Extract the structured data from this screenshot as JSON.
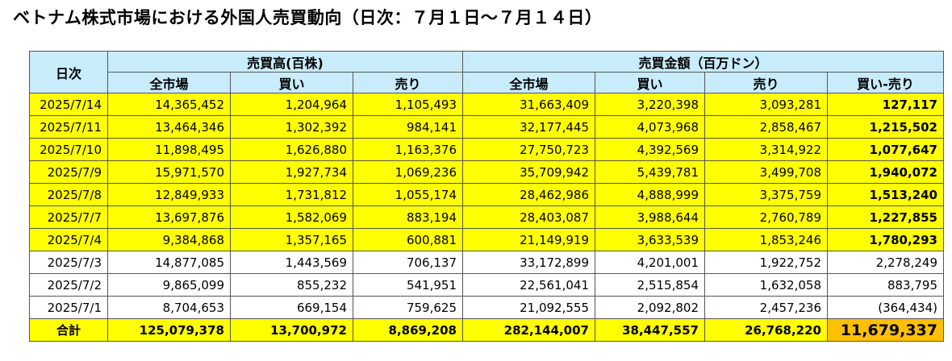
{
  "title": "ベトナム株式市場における外国人売買動向（日次：７月１日〜７月１４日）",
  "headers": {
    "date": "日次",
    "volume_group": "売買高(百株)",
    "value_group": "売買金額（百万ドン）",
    "volume_cols": [
      "全市場",
      "買い",
      "売り"
    ],
    "value_cols": [
      "全市場",
      "買い",
      "売り",
      "買い-売り"
    ]
  },
  "rows": [
    {
      "date": "2025/7/14",
      "highlight": true,
      "v_all": "14,365,452",
      "v_buy": "1,204,964",
      "v_sell": "1,105,493",
      "m_all": "31,663,409",
      "m_buy": "3,220,398",
      "m_sell": "3,093,281",
      "net": "127,117"
    },
    {
      "date": "2025/7/11",
      "highlight": true,
      "v_all": "13,464,346",
      "v_buy": "1,302,392",
      "v_sell": "984,141",
      "m_all": "32,177,445",
      "m_buy": "4,073,968",
      "m_sell": "2,858,467",
      "net": "1,215,502"
    },
    {
      "date": "2025/7/10",
      "highlight": true,
      "v_all": "11,898,495",
      "v_buy": "1,626,880",
      "v_sell": "1,163,376",
      "m_all": "27,750,723",
      "m_buy": "4,392,569",
      "m_sell": "3,314,922",
      "net": "1,077,647"
    },
    {
      "date": "2025/7/9",
      "highlight": true,
      "v_all": "15,971,570",
      "v_buy": "1,927,734",
      "v_sell": "1,069,236",
      "m_all": "35,709,942",
      "m_buy": "5,439,781",
      "m_sell": "3,499,708",
      "net": "1,940,072"
    },
    {
      "date": "2025/7/8",
      "highlight": true,
      "v_all": "12,849,933",
      "v_buy": "1,731,812",
      "v_sell": "1,055,174",
      "m_all": "28,462,986",
      "m_buy": "4,888,999",
      "m_sell": "3,375,759",
      "net": "1,513,240"
    },
    {
      "date": "2025/7/7",
      "highlight": true,
      "v_all": "13,697,876",
      "v_buy": "1,582,069",
      "v_sell": "883,194",
      "m_all": "28,403,087",
      "m_buy": "3,988,644",
      "m_sell": "2,760,789",
      "net": "1,227,855"
    },
    {
      "date": "2025/7/4",
      "highlight": true,
      "v_all": "9,384,868",
      "v_buy": "1,357,165",
      "v_sell": "600,881",
      "m_all": "21,149,919",
      "m_buy": "3,633,539",
      "m_sell": "1,853,246",
      "net": "1,780,293"
    },
    {
      "date": "2025/7/3",
      "highlight": false,
      "v_all": "14,877,085",
      "v_buy": "1,443,569",
      "v_sell": "706,137",
      "m_all": "33,172,899",
      "m_buy": "4,201,001",
      "m_sell": "1,922,752",
      "net": "2,278,249"
    },
    {
      "date": "2025/7/2",
      "highlight": false,
      "v_all": "9,865,099",
      "v_buy": "855,232",
      "v_sell": "541,951",
      "m_all": "22,561,041",
      "m_buy": "2,515,854",
      "m_sell": "1,632,058",
      "net": "883,795"
    },
    {
      "date": "2025/7/1",
      "highlight": false,
      "v_all": "8,704,653",
      "v_buy": "669,154",
      "v_sell": "759,625",
      "m_all": "21,092,555",
      "m_buy": "2,092,802",
      "m_sell": "2,457,236",
      "net": "(364,434)"
    }
  ],
  "total": {
    "label": "合計",
    "v_all": "125,079,378",
    "v_buy": "13,700,972",
    "v_sell": "8,869,208",
    "m_all": "282,144,007",
    "m_buy": "38,447,557",
    "m_sell": "26,768,220",
    "net": "11,679,337"
  },
  "colors": {
    "header_bg": "#c9ecfb",
    "highlight_bg": "#ffff00",
    "grand_total_bg": "#ffc000"
  }
}
